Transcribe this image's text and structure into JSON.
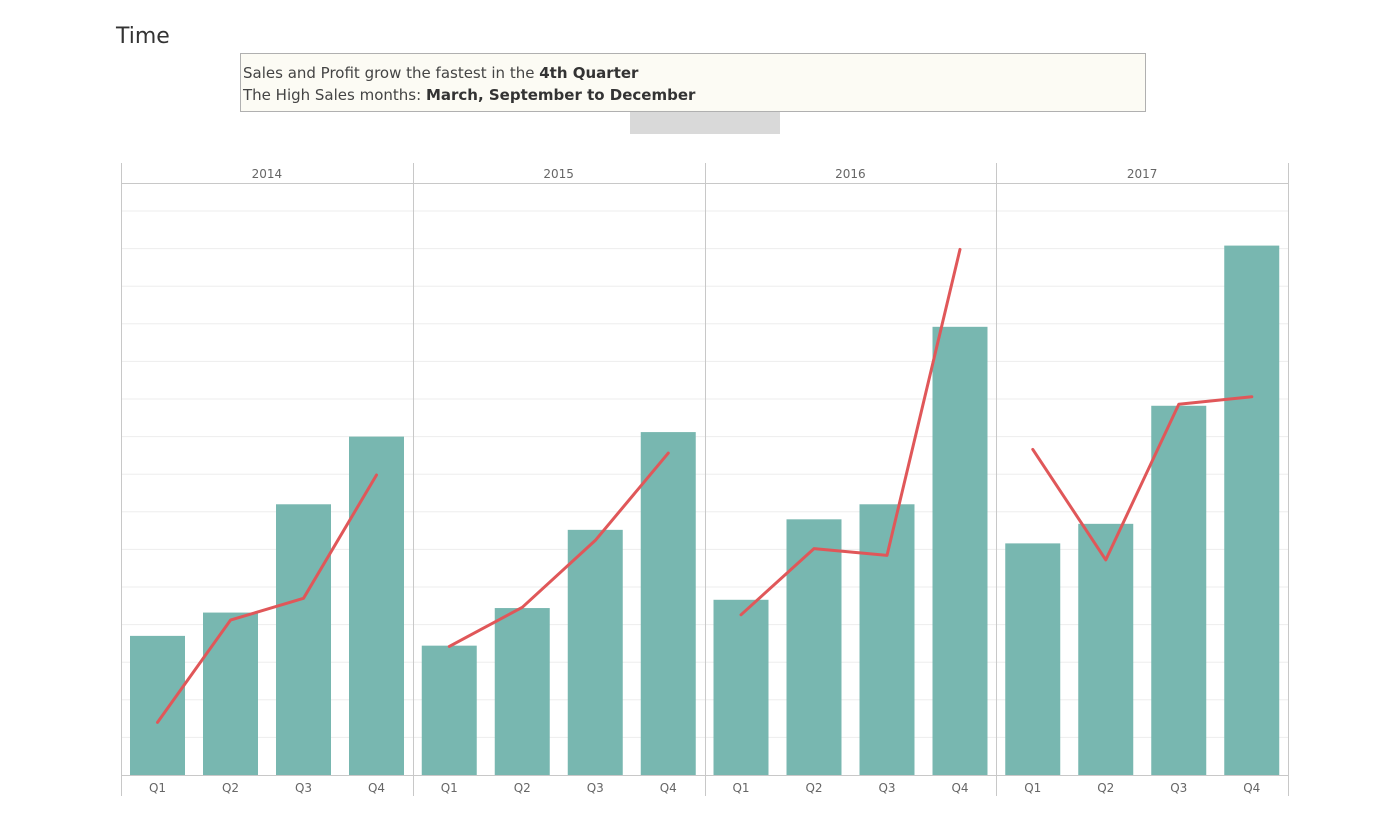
{
  "title": "Time",
  "annotation": {
    "line1_prefix": "Sales and Profit grow the fastest in the ",
    "line1_bold": "4th Quarter",
    "line2_prefix": "The High Sales months: ",
    "line2_bold": "March, September to December"
  },
  "colors": {
    "bar": "#78b7b0",
    "line": "#e05759",
    "grid": "#ededed",
    "divider": "#c8c8c8",
    "tick_text": "#666666"
  },
  "chart_data": {
    "type": "bar",
    "panels": [
      "2014",
      "2015",
      "2016",
      "2017"
    ],
    "categories": [
      "Q1",
      "Q2",
      "Q3",
      "Q4"
    ],
    "series": [
      {
        "chart": "bar",
        "axis": "left",
        "values": [
          [
            18.5,
            21.6,
            36.0,
            45.0
          ],
          [
            17.2,
            22.2,
            32.6,
            45.6
          ],
          [
            23.3,
            34.0,
            36.0,
            59.6
          ],
          [
            30.8,
            33.4,
            49.1,
            70.4
          ]
        ]
      },
      {
        "chart": "line",
        "axis": "right",
        "values": [
          [
            7.0,
            20.6,
            23.5,
            39.9
          ],
          [
            17.1,
            22.3,
            31.2,
            42.8
          ],
          [
            21.3,
            30.1,
            29.2,
            69.9
          ],
          [
            43.3,
            28.6,
            49.3,
            50.3
          ]
        ]
      }
    ],
    "ylim_left": [
      0,
      75
    ],
    "ylim_right": [
      0,
      75
    ],
    "grid": true,
    "legend": "none",
    "xlabel": "",
    "ylabel": ""
  }
}
